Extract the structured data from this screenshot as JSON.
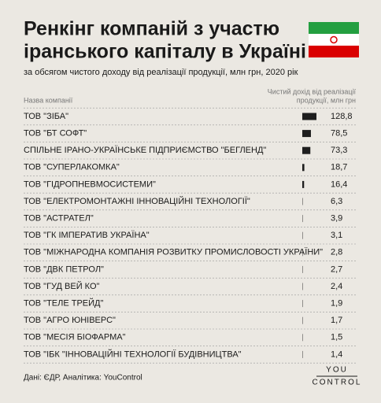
{
  "chart_data": {
    "type": "bar",
    "orientation": "horizontal",
    "title": [
      "Ренкінг компаній з участю",
      "іранського капіталу в Україні"
    ],
    "subtitle": "за обсягом чистого доходу від реалізації продукції, млн грн, 2020 рік",
    "name_header": "Назва компанії",
    "value_header": [
      "Чистий дохід від реалізації",
      "продукції, млн грн"
    ],
    "categories": [
      "ТОВ \"ЗІБА\"",
      "ТОВ \"БТ СОФТ\"",
      "СПІЛЬНЕ ІРАНО-УКРАЇНСЬКЕ ПІДПРИЄМСТВО \"БЕГЛЕНД\"",
      "ТОВ \"СУПЕРЛАКОМКА\"",
      "ТОВ \"ГІДРОПНЕВМОСИСТЕМИ\"",
      "ТОВ \"ЕЛЕКТРОМОНТАЖНІ ІННОВАЦІЙНІ ТЕХНОЛОГІЇ\"",
      "ТОВ \"АСТРАТЕЛ\"",
      "ТОВ \"ГК ІМПЕРАТИВ УКРАЇНА\"",
      "ТОВ \"МІЖНАРОДНА КОМПАНІЯ РОЗВИТКУ ПРОМИСЛОВОСТІ УКРАЇНИ\"",
      "ТОВ \"ДВК ПЕТРОЛ\"",
      "ТОВ \"ГУД ВЕЙ КО\"",
      "ТОВ \"ТЕЛЕ ТРЕЙД\"",
      "ТОВ \"АГРО ЮНІВЕРС\"",
      "ТОВ \"МЕСІЯ БІОФАРМА\"",
      "ТОВ \"ІБК \"ІННОВАЦІЙНІ ТЕХНОЛОГІЇ БУДІВНИЦТВА\""
    ],
    "values": [
      128.8,
      78.5,
      73.3,
      18.7,
      16.4,
      6.3,
      3.9,
      3.1,
      2.8,
      2.7,
      2.4,
      1.9,
      1.7,
      1.5,
      1.4
    ],
    "value_labels": [
      "128,8",
      "78,5",
      "73,3",
      "18,7",
      "16,4",
      "6,3",
      "3,9",
      "3,1",
      "2,8",
      "2,7",
      "2,4",
      "1,9",
      "1,7",
      "1,5",
      "1,4"
    ],
    "color": "#1e1e1e",
    "source": "Дані: ЄДР, Аналітика: YouControl",
    "logo": [
      "YOU",
      "CONTROL"
    ]
  }
}
